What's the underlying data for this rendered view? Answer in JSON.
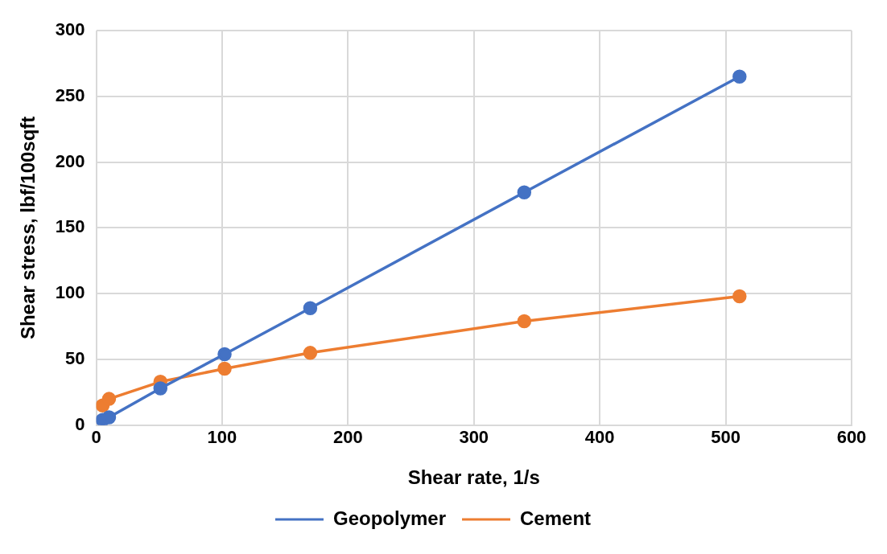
{
  "chart_data": {
    "type": "line",
    "xlabel": "Shear rate, 1/s",
    "ylabel": "Shear stress, lbf/100sqft",
    "x": [
      5.1,
      10.2,
      51,
      102,
      170,
      340,
      511
    ],
    "series": [
      {
        "name": "Geopolymer",
        "color": "#4472c4",
        "values": [
          4,
          6,
          28,
          54,
          89,
          177,
          265
        ]
      },
      {
        "name": "Cement",
        "color": "#ed7d31",
        "values": [
          15,
          20,
          33,
          43,
          55,
          79,
          98
        ]
      }
    ],
    "xlim": [
      0,
      600
    ],
    "xticks": [
      0,
      100,
      200,
      300,
      400,
      500,
      600
    ],
    "ylim": [
      0,
      300
    ],
    "yticks": [
      0,
      50,
      100,
      150,
      200,
      250,
      300
    ],
    "grid": true,
    "legend": "bottom",
    "marker": "circle",
    "line_style": "solid"
  }
}
